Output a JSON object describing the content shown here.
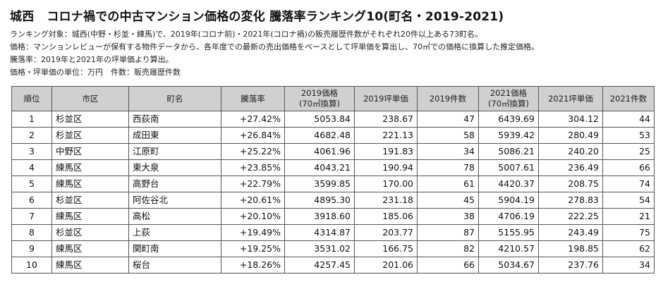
{
  "title": {
    "region": "城西",
    "main": "コロナ禍での中古マンション価格の変化 騰落率ランキング10(町名・2019-2021)"
  },
  "notes": [
    "ランキング対象：城西(中野・杉並・練馬)で、2019年(コロナ前)・2021年(コロナ禍)の販売履歴件数がそれぞれ20件以上ある73町名。",
    "価格：マンションレビューが保有する物件データから、各年度での最新の売出価格をベースとして坪単価を算出し、70㎡での価格に換算した推定価格。",
    "騰落率：2019年と2021年の坪単価より算出。",
    "価格・坪単価の単位：万円　件数：販売履歴件数"
  ],
  "table": {
    "headers": {
      "rank": "順位",
      "ward": "市区",
      "town": "町名",
      "rate": "騰落率",
      "price2019_line1": "2019価格",
      "price2019_line2": "(70㎡換算)",
      "tsubo2019": "2019坪単価",
      "count2019": "2019件数",
      "price2021_line1": "2021価格",
      "price2021_line2": "(70㎡換算)",
      "tsubo2021": "2021坪単価",
      "count2021": "2021件数"
    },
    "rows": [
      {
        "rank": "1",
        "ward": "杉並区",
        "town": "西荻南",
        "rate": "+27.42%",
        "price2019": "5053.84",
        "tsubo2019": "238.67",
        "count2019": "47",
        "price2021": "6439.69",
        "tsubo2021": "304.12",
        "count2021": "44"
      },
      {
        "rank": "2",
        "ward": "杉並区",
        "town": "成田東",
        "rate": "+26.84%",
        "price2019": "4682.48",
        "tsubo2019": "221.13",
        "count2019": "58",
        "price2021": "5939.42",
        "tsubo2021": "280.49",
        "count2021": "53"
      },
      {
        "rank": "3",
        "ward": "中野区",
        "town": "江原町",
        "rate": "+25.22%",
        "price2019": "4061.96",
        "tsubo2019": "191.83",
        "count2019": "34",
        "price2021": "5086.21",
        "tsubo2021": "240.20",
        "count2021": "25"
      },
      {
        "rank": "4",
        "ward": "練馬区",
        "town": "東大泉",
        "rate": "+23.85%",
        "price2019": "4043.21",
        "tsubo2019": "190.94",
        "count2019": "78",
        "price2021": "5007.61",
        "tsubo2021": "236.49",
        "count2021": "66"
      },
      {
        "rank": "5",
        "ward": "練馬区",
        "town": "高野台",
        "rate": "+22.79%",
        "price2019": "3599.85",
        "tsubo2019": "170.00",
        "count2019": "61",
        "price2021": "4420.37",
        "tsubo2021": "208.75",
        "count2021": "74"
      },
      {
        "rank": "6",
        "ward": "杉並区",
        "town": "阿佐谷北",
        "rate": "+20.61%",
        "price2019": "4895.30",
        "tsubo2019": "231.18",
        "count2019": "45",
        "price2021": "5904.19",
        "tsubo2021": "278.83",
        "count2021": "54"
      },
      {
        "rank": "7",
        "ward": "練馬区",
        "town": "高松",
        "rate": "+20.10%",
        "price2019": "3918.60",
        "tsubo2019": "185.06",
        "count2019": "38",
        "price2021": "4706.19",
        "tsubo2021": "222.25",
        "count2021": "21"
      },
      {
        "rank": "8",
        "ward": "杉並区",
        "town": "上荻",
        "rate": "+19.49%",
        "price2019": "4314.87",
        "tsubo2019": "203.77",
        "count2019": "87",
        "price2021": "5155.95",
        "tsubo2021": "243.49",
        "count2021": "75"
      },
      {
        "rank": "9",
        "ward": "練馬区",
        "town": "関町南",
        "rate": "+19.25%",
        "price2019": "3531.02",
        "tsubo2019": "166.75",
        "count2019": "82",
        "price2021": "4210.57",
        "tsubo2021": "198.85",
        "count2021": "62"
      },
      {
        "rank": "10",
        "ward": "練馬区",
        "town": "桜台",
        "rate": "+18.26%",
        "price2019": "4257.45",
        "tsubo2019": "201.06",
        "count2019": "66",
        "price2021": "5034.67",
        "tsubo2021": "237.76",
        "count2021": "34"
      }
    ]
  }
}
